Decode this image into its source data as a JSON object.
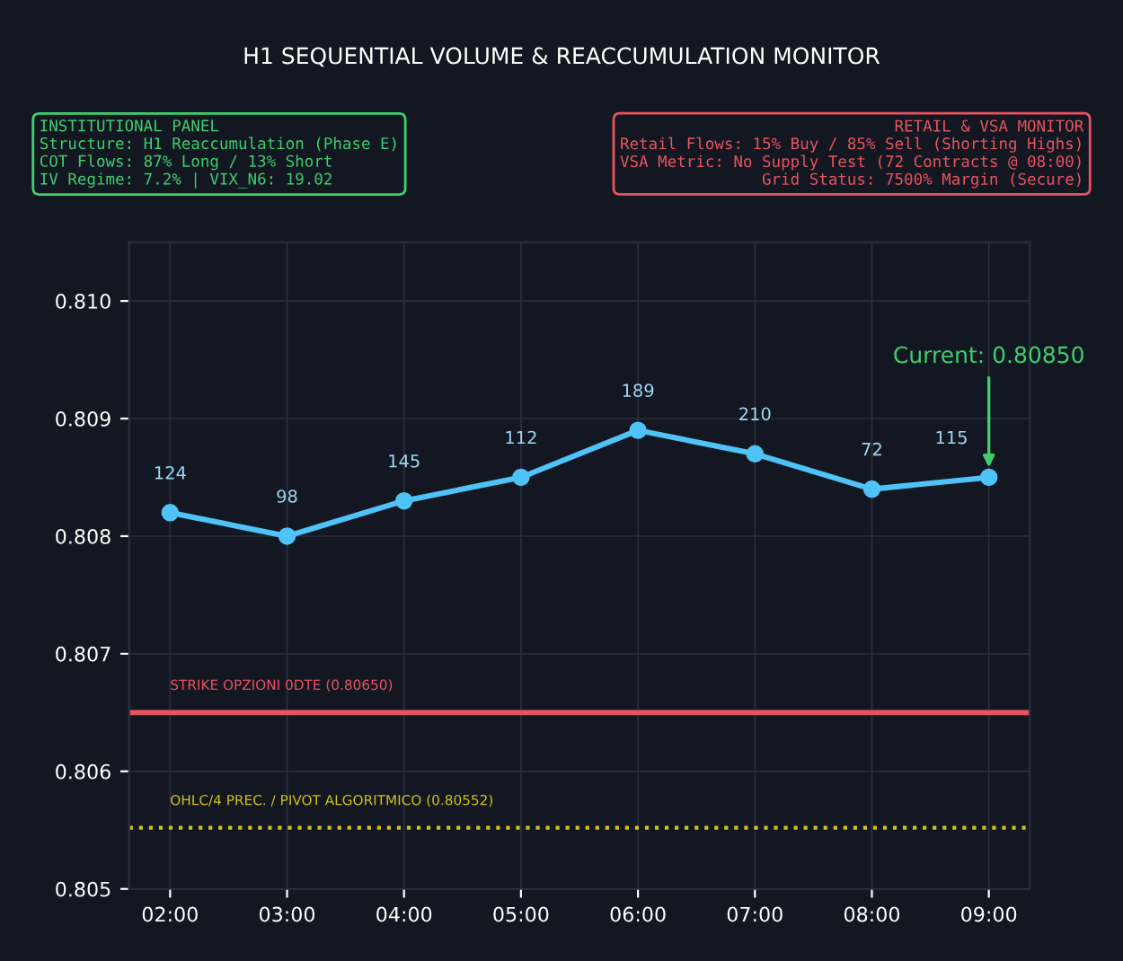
{
  "chart_data": {
    "type": "line",
    "title": "H1 SEQUENTIAL VOLUME & REACCUMULATION MONITOR",
    "categories": [
      "02:00",
      "03:00",
      "04:00",
      "05:00",
      "06:00",
      "07:00",
      "08:00",
      "09:00"
    ],
    "series": [
      {
        "color": "#4fc3f7",
        "values": [
          0.8082,
          0.808,
          0.8083,
          0.8085,
          0.8089,
          0.8087,
          0.8084,
          0.8085
        ]
      }
    ],
    "ylim": [
      0.805,
      0.8105
    ],
    "yticks": [
      {
        "value": 0.805,
        "label": "0.805"
      },
      {
        "value": 0.806,
        "label": "0.806"
      },
      {
        "value": 0.807,
        "label": "0.807"
      },
      {
        "value": 0.808,
        "label": "0.808"
      },
      {
        "value": 0.809,
        "label": "0.809"
      },
      {
        "value": 0.81,
        "label": "0.810"
      }
    ],
    "grid": true,
    "marker": "circle",
    "line_style": "solid",
    "ref_lines": [
      {
        "axis": "y",
        "value": 0.8065,
        "label": "STRIKE OPZIONI 0DTE (0.80650)",
        "color": "#e8545f",
        "line_style": "solid"
      },
      {
        "axis": "y",
        "value": 0.80552,
        "label": "OHLC/4 PREC. / PIVOT ALGORITMICO (0.80552)",
        "color": "#d4c21c",
        "line_style": "dotted"
      }
    ],
    "annotations": [
      "INSTITUTIONAL PANEL\nStructure: H1 Reaccumulation (Phase E)\nCOT Flows: 87% Long / 13% Short\nIV Regime: 7.2% | VIX_N6: 19.02",
      "RETAIL & VSA MONITOR\nRetail Flows: 15% Buy / 85% Sell (Shorting Highs)\nVSA Metric: No Supply Test (72 Contracts @ 08:00)\nGrid Status: 7500% Margin (Secure)",
      {
        "text": "Current: 0.80850",
        "x": "09:00",
        "y": 0.8085
      },
      {
        "text": "124",
        "x": "02:00",
        "y": 0.8082
      },
      {
        "text": "98",
        "x": "03:00",
        "y": 0.808
      },
      {
        "text": "145",
        "x": "04:00",
        "y": 0.8083
      },
      {
        "text": "112",
        "x": "05:00",
        "y": 0.8085
      },
      {
        "text": "189",
        "x": "06:00",
        "y": 0.8089
      },
      {
        "text": "210",
        "x": "07:00",
        "y": 0.8087
      },
      {
        "text": "72",
        "x": "08:00",
        "y": 0.8084
      },
      {
        "text": "115",
        "x": "09:00",
        "y": 0.8085
      }
    ]
  }
}
